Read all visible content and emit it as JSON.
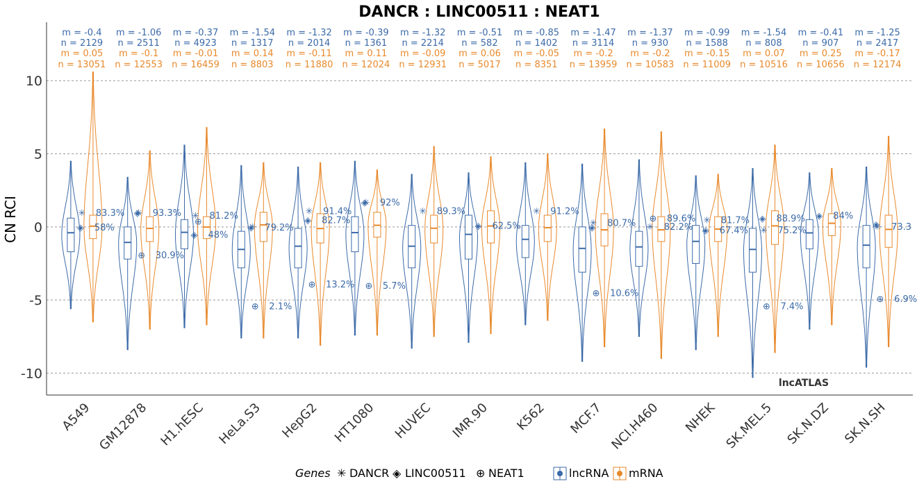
{
  "chart_data": {
    "type": "violin",
    "title": "DANCR : LINC00511 : NEAT1",
    "ylabel": "CN RCI",
    "xlabel": "",
    "ylim": [
      -11.5,
      14
    ],
    "yticks": [
      10,
      5,
      0,
      -5,
      -10
    ],
    "grid": "horizontal dashed",
    "watermark": "lncATLAS",
    "colors": {
      "lncRNA": "#3b6aa8",
      "mRNA": "#e8892b"
    },
    "legend": {
      "genes_label": "Genes",
      "genes": [
        {
          "name": "DANCR",
          "symbol": "✳"
        },
        {
          "name": "LINC00511",
          "symbol": "◈"
        },
        {
          "name": "NEAT1",
          "symbol": "⊕"
        }
      ],
      "series": [
        "lncRNA",
        "mRNA"
      ]
    },
    "categories": [
      "A549",
      "GM12878",
      "H1.hESC",
      "HeLa.S3",
      "HepG2",
      "HT1080",
      "HUVEC",
      "IMR.90",
      "K562",
      "MCF.7",
      "NCI.H460",
      "NHEK",
      "SK.MEL.5",
      "SK.N.DZ",
      "SK.N.SH"
    ],
    "stats": [
      {
        "lnc_m": "m = -0.4",
        "lnc_n": "n = 2129",
        "mrna_m": "m = 0.05",
        "mrna_n": "n = 13051"
      },
      {
        "lnc_m": "m = -1.06",
        "lnc_n": "n = 2511",
        "mrna_m": "m = -0.1",
        "mrna_n": "n = 12553"
      },
      {
        "lnc_m": "m = -0.37",
        "lnc_n": "n = 4923",
        "mrna_m": "m = -0.01",
        "mrna_n": "n = 16459"
      },
      {
        "lnc_m": "m = -1.54",
        "lnc_n": "n = 1317",
        "mrna_m": "m = 0.14",
        "mrna_n": "n = 8803"
      },
      {
        "lnc_m": "m = -1.32",
        "lnc_n": "n = 2014",
        "mrna_m": "m = -0.11",
        "mrna_n": "n = 11880"
      },
      {
        "lnc_m": "m = -0.39",
        "lnc_n": "n = 1361",
        "mrna_m": "m = 0.11",
        "mrna_n": "n = 12024"
      },
      {
        "lnc_m": "m = -1.32",
        "lnc_n": "n = 2214",
        "mrna_m": "m = -0.09",
        "mrna_n": "n = 12931"
      },
      {
        "lnc_m": "m = -0.51",
        "lnc_n": "n = 582",
        "mrna_m": "m = 0.06",
        "mrna_n": "n = 5017"
      },
      {
        "lnc_m": "m = -0.85",
        "lnc_n": "n = 1402",
        "mrna_m": "m = -0.05",
        "mrna_n": "n = 8351"
      },
      {
        "lnc_m": "m = -1.47",
        "lnc_n": "n = 3114",
        "mrna_m": "m = -0.2",
        "mrna_n": "n = 13959"
      },
      {
        "lnc_m": "m = -1.37",
        "lnc_n": "n = 930",
        "mrna_m": "m = -0.2",
        "mrna_n": "n = 10583"
      },
      {
        "lnc_m": "m = -0.99",
        "lnc_n": "n = 1588",
        "mrna_m": "m = -0.15",
        "mrna_n": "n = 11009"
      },
      {
        "lnc_m": "m = -1.54",
        "lnc_n": "n = 808",
        "mrna_m": "m = 0.07",
        "mrna_n": "n = 10516"
      },
      {
        "lnc_m": "m = -0.41",
        "lnc_n": "n = 907",
        "mrna_m": "m = 0.25",
        "mrna_n": "n = 10656"
      },
      {
        "lnc_m": "m = -1.25",
        "lnc_n": "n = 2417",
        "mrna_m": "m = -0.17",
        "mrna_n": "n = 12174"
      }
    ],
    "series": [
      {
        "name": "lncRNA",
        "median": [
          -0.4,
          -1.06,
          -0.37,
          -1.54,
          -1.32,
          -0.39,
          -1.32,
          -0.51,
          -0.85,
          -1.47,
          -1.37,
          -0.99,
          -1.54,
          -0.41,
          -1.25
        ],
        "q1": [
          -1.7,
          -2.2,
          -1.5,
          -2.8,
          -2.8,
          -1.7,
          -2.8,
          -2.2,
          -2.1,
          -3.1,
          -2.7,
          -2.5,
          -3.1,
          -1.5,
          -2.8
        ],
        "q3": [
          0.6,
          0.0,
          0.5,
          -0.3,
          -0.1,
          0.7,
          0.1,
          0.8,
          0.1,
          0.0,
          -0.3,
          0.1,
          -0.1,
          0.5,
          0.1
        ],
        "min": [
          -5.6,
          -8.4,
          -6.9,
          -7.6,
          -7.6,
          -7.4,
          -8.3,
          -7.9,
          -6.7,
          -9.2,
          -7.5,
          -8.4,
          -10.3,
          -7.0,
          -9.6
        ],
        "max": [
          4.5,
          3.4,
          5.6,
          4.2,
          4.1,
          4.5,
          3.6,
          3.7,
          4.4,
          4.3,
          4.6,
          3.5,
          4.0,
          3.7,
          4.1
        ]
      },
      {
        "name": "mRNA",
        "median": [
          0.05,
          -0.1,
          -0.01,
          0.14,
          -0.11,
          0.11,
          -0.09,
          0.06,
          -0.05,
          -0.2,
          -0.2,
          -0.15,
          0.07,
          0.25,
          -0.17
        ],
        "q1": [
          -0.8,
          -1.0,
          -0.8,
          -1.0,
          -1.1,
          -0.7,
          -1.1,
          -1.1,
          -1.0,
          -1.3,
          -1.0,
          -1.0,
          -1.2,
          -0.6,
          -1.4
        ],
        "q3": [
          0.8,
          0.7,
          0.7,
          1.0,
          0.9,
          1.0,
          0.8,
          1.1,
          0.8,
          0.9,
          0.7,
          0.7,
          1.1,
          0.9,
          0.8
        ],
        "min": [
          -6.5,
          -7.0,
          -6.7,
          -7.6,
          -8.1,
          -7.4,
          -7.5,
          -7.3,
          -6.4,
          -8.2,
          -9.0,
          -7.5,
          -8.6,
          -6.7,
          -8.2
        ],
        "max": [
          10.6,
          5.2,
          6.8,
          4.4,
          4.4,
          3.9,
          5.5,
          4.8,
          5.0,
          6.7,
          6.5,
          3.6,
          5.6,
          4.0,
          6.2
        ]
      }
    ],
    "gene_markers": [
      {
        "category": "A549",
        "gene": "DANCR",
        "value": 1.0,
        "label": "83.3%"
      },
      {
        "category": "A549",
        "gene": "LINC00511",
        "value": 0.0,
        "label": "58%"
      },
      {
        "category": "GM12878",
        "gene": "DANCR",
        "value": 1.0,
        "label": "93.3%"
      },
      {
        "category": "GM12878",
        "gene": "LINC00511",
        "value": 1.0,
        "label": ""
      },
      {
        "category": "GM12878",
        "gene": "NEAT1",
        "value": -1.9,
        "label": "30.9%"
      },
      {
        "category": "H1.hESC",
        "gene": "DANCR",
        "value": 0.8,
        "label": "81.2%"
      },
      {
        "category": "H1.hESC",
        "gene": "NEAT1",
        "value": 0.4,
        "label": ""
      },
      {
        "category": "H1.hESC",
        "gene": "LINC00511",
        "value": -0.5,
        "label": "48%"
      },
      {
        "category": "HeLa.S3",
        "gene": "DANCR",
        "value": 0.05,
        "label": ""
      },
      {
        "category": "HeLa.S3",
        "gene": "LINC00511",
        "value": 0.0,
        "label": "79.2%"
      },
      {
        "category": "HeLa.S3",
        "gene": "NEAT1",
        "value": -5.4,
        "label": "2.1%"
      },
      {
        "category": "HepG2",
        "gene": "DANCR",
        "value": 1.1,
        "label": "91.4%"
      },
      {
        "category": "HepG2",
        "gene": "LINC00511",
        "value": 0.5,
        "label": "82.7%"
      },
      {
        "category": "HepG2",
        "gene": "NEAT1",
        "value": -3.9,
        "label": "13.2%"
      },
      {
        "category": "HT1080",
        "gene": "DANCR",
        "value": 1.7,
        "label": "92%"
      },
      {
        "category": "HT1080",
        "gene": "LINC00511",
        "value": 1.7,
        "label": ""
      },
      {
        "category": "HT1080",
        "gene": "NEAT1",
        "value": -4.0,
        "label": "5.7%"
      },
      {
        "category": "HUVEC",
        "gene": "DANCR",
        "value": 1.1,
        "label": "89.3%"
      },
      {
        "category": "IMR.90",
        "gene": "LINC00511",
        "value": 0.1,
        "label": "62.5%"
      },
      {
        "category": "K562",
        "gene": "DANCR",
        "value": 1.1,
        "label": "91.2%"
      },
      {
        "category": "MCF.7",
        "gene": "DANCR",
        "value": 0.3,
        "label": "80.7%"
      },
      {
        "category": "MCF.7",
        "gene": "LINC00511",
        "value": 0.0,
        "label": ""
      },
      {
        "category": "MCF.7",
        "gene": "NEAT1",
        "value": -4.5,
        "label": "10.6%"
      },
      {
        "category": "NCI.H460",
        "gene": "NEAT1",
        "value": 0.6,
        "label": "89.6%"
      },
      {
        "category": "NCI.H460",
        "gene": "DANCR",
        "value": 0.05,
        "label": "82.2%"
      },
      {
        "category": "NHEK",
        "gene": "DANCR",
        "value": 0.5,
        "label": "81.7%"
      },
      {
        "category": "NHEK",
        "gene": "LINC00511",
        "value": -0.2,
        "label": "67.4%"
      },
      {
        "category": "SK.MEL.5",
        "gene": "LINC00511",
        "value": 0.6,
        "label": "88.9%"
      },
      {
        "category": "SK.MEL.5",
        "gene": "DANCR",
        "value": -0.2,
        "label": "75.2%"
      },
      {
        "category": "SK.MEL.5",
        "gene": "NEAT1",
        "value": -5.4,
        "label": "7.4%"
      },
      {
        "category": "SK.N.DZ",
        "gene": "LINC00511",
        "value": 0.8,
        "label": "84%"
      },
      {
        "category": "SK.N.SH",
        "gene": "DANCR",
        "value": 0.05,
        "label": "73.3"
      },
      {
        "category": "SK.N.SH",
        "gene": "LINC00511",
        "value": 0.2,
        "label": ""
      },
      {
        "category": "SK.N.SH",
        "gene": "NEAT1",
        "value": -4.9,
        "label": "6.9%"
      }
    ]
  }
}
